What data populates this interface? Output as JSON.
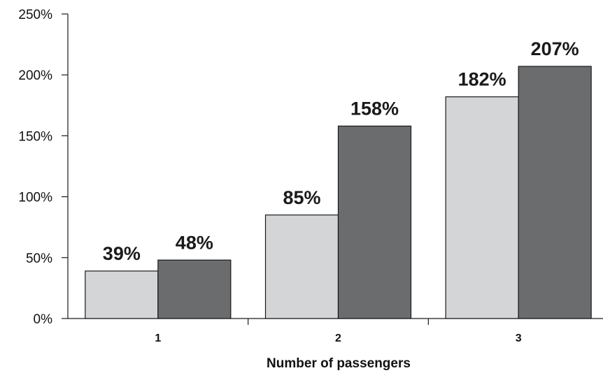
{
  "chart_data": {
    "type": "bar",
    "title": "",
    "xlabel": "Number of passengers",
    "ylabel": "",
    "categories": [
      "1",
      "2",
      "3"
    ],
    "series": [
      {
        "color": "#d4d5d7",
        "values": [
          39,
          85,
          182
        ],
        "labels": [
          "39%",
          "85%",
          "182%"
        ]
      },
      {
        "color": "#6b6c6e",
        "values": [
          48,
          158,
          207
        ],
        "labels": [
          "48%",
          "158%",
          "207%"
        ]
      }
    ],
    "ylim": [
      0,
      250
    ],
    "yticks": [
      0,
      50,
      100,
      150,
      200,
      250
    ],
    "ytick_labels": [
      "0%",
      "50%",
      "100%",
      "150%",
      "200%",
      "250%"
    ],
    "grid": false,
    "legend": "none"
  }
}
